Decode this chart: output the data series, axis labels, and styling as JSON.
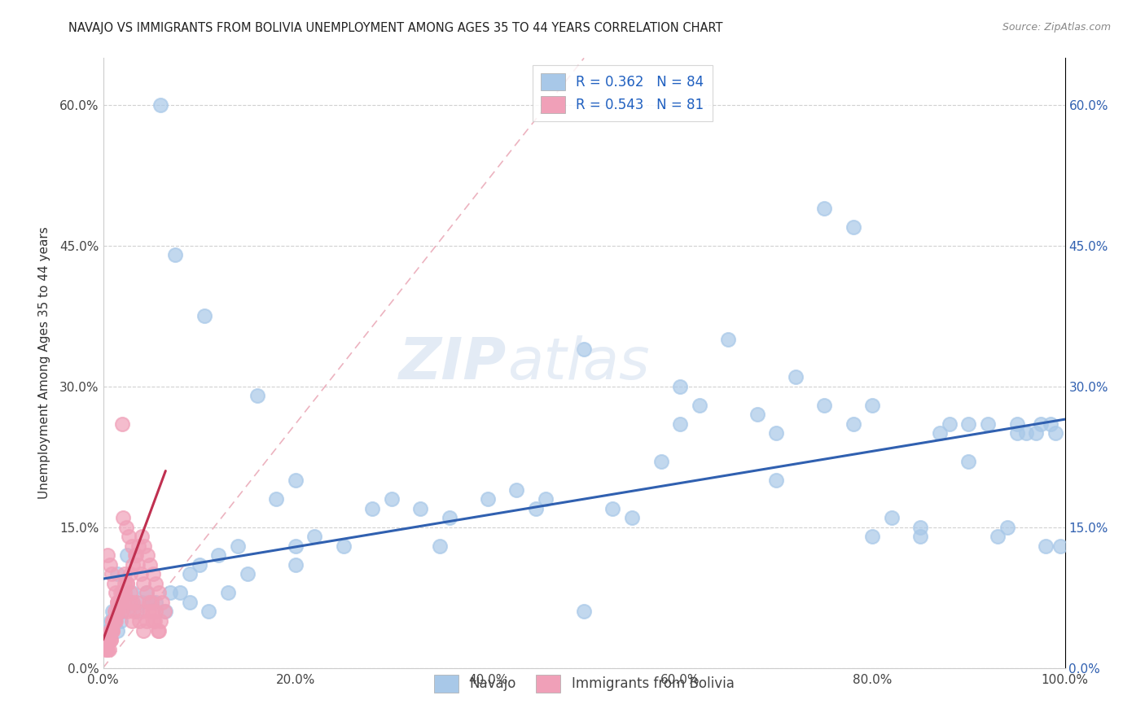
{
  "title": "NAVAJO VS IMMIGRANTS FROM BOLIVIA UNEMPLOYMENT AMONG AGES 35 TO 44 YEARS CORRELATION CHART",
  "source": "Source: ZipAtlas.com",
  "ylabel": "Unemployment Among Ages 35 to 44 years",
  "xlim": [
    0,
    1.0
  ],
  "ylim": [
    0,
    0.65
  ],
  "navajo_R": 0.362,
  "navajo_N": 84,
  "bolivia_R": 0.543,
  "bolivia_N": 81,
  "navajo_color": "#a8c8e8",
  "bolivia_color": "#f0a0b8",
  "navajo_line_color": "#3060b0",
  "bolivia_line_color": "#c03050",
  "diag_line_color": "#e08090",
  "legend_label_navajo": "Navajo",
  "legend_label_bolivia": "Immigrants from Bolivia",
  "navajo_x": [
    0.06,
    0.075,
    0.105,
    0.75,
    0.78,
    0.005,
    0.008,
    0.01,
    0.012,
    0.015,
    0.018,
    0.02,
    0.025,
    0.03,
    0.035,
    0.04,
    0.045,
    0.055,
    0.065,
    0.08,
    0.09,
    0.1,
    0.12,
    0.14,
    0.16,
    0.18,
    0.2,
    0.22,
    0.25,
    0.28,
    0.3,
    0.33,
    0.36,
    0.4,
    0.43,
    0.46,
    0.5,
    0.53,
    0.55,
    0.58,
    0.6,
    0.62,
    0.65,
    0.68,
    0.7,
    0.72,
    0.75,
    0.78,
    0.8,
    0.82,
    0.85,
    0.87,
    0.88,
    0.9,
    0.92,
    0.93,
    0.94,
    0.95,
    0.96,
    0.97,
    0.975,
    0.98,
    0.985,
    0.99,
    0.995,
    0.05,
    0.07,
    0.09,
    0.11,
    0.13,
    0.15,
    0.2,
    0.35,
    0.5,
    0.85,
    0.015,
    0.025,
    0.2,
    0.45,
    0.6,
    0.7,
    0.8,
    0.9,
    0.95
  ],
  "navajo_y": [
    0.6,
    0.44,
    0.375,
    0.49,
    0.47,
    0.04,
    0.05,
    0.06,
    0.05,
    0.04,
    0.05,
    0.06,
    0.07,
    0.08,
    0.06,
    0.07,
    0.08,
    0.07,
    0.06,
    0.08,
    0.1,
    0.11,
    0.12,
    0.13,
    0.29,
    0.18,
    0.13,
    0.14,
    0.13,
    0.17,
    0.18,
    0.17,
    0.16,
    0.18,
    0.19,
    0.18,
    0.34,
    0.17,
    0.16,
    0.22,
    0.3,
    0.28,
    0.35,
    0.27,
    0.25,
    0.31,
    0.28,
    0.26,
    0.14,
    0.16,
    0.14,
    0.25,
    0.26,
    0.22,
    0.26,
    0.14,
    0.15,
    0.26,
    0.25,
    0.25,
    0.26,
    0.13,
    0.26,
    0.25,
    0.13,
    0.07,
    0.08,
    0.07,
    0.06,
    0.08,
    0.1,
    0.11,
    0.13,
    0.06,
    0.15,
    0.1,
    0.12,
    0.2,
    0.17,
    0.26,
    0.2,
    0.28,
    0.26,
    0.25
  ],
  "bolivia_x": [
    0.02,
    0.005,
    0.008,
    0.01,
    0.012,
    0.015,
    0.018,
    0.02,
    0.022,
    0.025,
    0.028,
    0.03,
    0.032,
    0.035,
    0.038,
    0.04,
    0.042,
    0.045,
    0.048,
    0.05,
    0.052,
    0.055,
    0.058,
    0.06,
    0.005,
    0.007,
    0.009,
    0.011,
    0.013,
    0.016,
    0.019,
    0.022,
    0.025,
    0.028,
    0.031,
    0.006,
    0.008,
    0.01,
    0.013,
    0.016,
    0.019,
    0.022,
    0.025,
    0.028,
    0.031,
    0.034,
    0.037,
    0.04,
    0.043,
    0.046,
    0.049,
    0.052,
    0.055,
    0.058,
    0.061,
    0.064,
    0.004,
    0.006,
    0.008,
    0.01,
    0.012,
    0.015,
    0.018,
    0.021,
    0.024,
    0.027,
    0.03,
    0.033,
    0.036,
    0.039,
    0.042,
    0.045,
    0.048,
    0.051,
    0.054,
    0.057,
    0.003,
    0.005,
    0.007,
    0.01,
    0.015
  ],
  "bolivia_y": [
    0.26,
    0.02,
    0.03,
    0.04,
    0.05,
    0.06,
    0.07,
    0.08,
    0.09,
    0.06,
    0.07,
    0.05,
    0.06,
    0.07,
    0.05,
    0.06,
    0.04,
    0.05,
    0.06,
    0.07,
    0.05,
    0.06,
    0.04,
    0.05,
    0.12,
    0.11,
    0.1,
    0.09,
    0.08,
    0.07,
    0.06,
    0.1,
    0.09,
    0.08,
    0.07,
    0.02,
    0.03,
    0.04,
    0.05,
    0.06,
    0.07,
    0.08,
    0.09,
    0.1,
    0.11,
    0.12,
    0.13,
    0.14,
    0.13,
    0.12,
    0.11,
    0.1,
    0.09,
    0.08,
    0.07,
    0.06,
    0.02,
    0.03,
    0.04,
    0.05,
    0.06,
    0.07,
    0.08,
    0.16,
    0.15,
    0.14,
    0.13,
    0.12,
    0.11,
    0.1,
    0.09,
    0.08,
    0.07,
    0.06,
    0.05,
    0.04,
    0.02,
    0.03,
    0.04,
    0.05,
    0.07
  ]
}
